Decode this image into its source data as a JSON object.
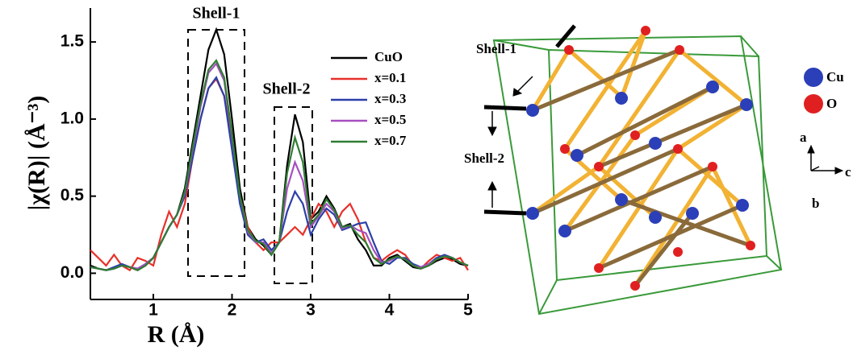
{
  "chart_data": {
    "type": "line",
    "x_label": "R (Å)",
    "y_label": "|χ(R)| (Å⁻³)",
    "x": [
      0.2,
      0.3,
      0.4,
      0.5,
      0.6,
      0.7,
      0.8,
      0.9,
      1.0,
      1.1,
      1.2,
      1.3,
      1.4,
      1.5,
      1.6,
      1.7,
      1.8,
      1.9,
      2.0,
      2.1,
      2.2,
      2.3,
      2.4,
      2.5,
      2.6,
      2.7,
      2.8,
      2.9,
      3.0,
      3.1,
      3.2,
      3.3,
      3.4,
      3.5,
      3.6,
      3.7,
      3.8,
      3.9,
      4.0,
      4.1,
      4.2,
      4.3,
      4.4,
      4.5,
      4.6,
      4.7,
      4.8,
      4.9,
      5.0
    ],
    "series": [
      {
        "name": "CuO",
        "color": "#000000",
        "values": [
          0.05,
          0.03,
          0.02,
          0.03,
          0.05,
          0.04,
          0.02,
          0.05,
          0.1,
          0.2,
          0.3,
          0.38,
          0.55,
          0.85,
          1.15,
          1.45,
          1.58,
          1.42,
          1.0,
          0.55,
          0.3,
          0.22,
          0.18,
          0.12,
          0.2,
          0.7,
          1.03,
          0.85,
          0.35,
          0.4,
          0.5,
          0.42,
          0.3,
          0.32,
          0.22,
          0.15,
          0.05,
          0.05,
          0.1,
          0.12,
          0.08,
          0.04,
          0.03,
          0.05,
          0.08,
          0.1,
          0.09,
          0.06,
          0.05
        ]
      },
      {
        "name": "x=0.1",
        "color": "#e8302a",
        "values": [
          0.15,
          0.1,
          0.05,
          0.12,
          0.05,
          0.02,
          0.1,
          0.08,
          0.05,
          0.25,
          0.4,
          0.3,
          0.45,
          0.75,
          1.0,
          1.2,
          1.26,
          1.15,
          0.85,
          0.5,
          0.3,
          0.2,
          0.15,
          0.2,
          0.2,
          0.25,
          0.3,
          0.25,
          0.35,
          0.45,
          0.4,
          0.3,
          0.4,
          0.45,
          0.35,
          0.2,
          0.1,
          0.08,
          0.12,
          0.15,
          0.12,
          0.05,
          0.03,
          0.08,
          0.12,
          0.1,
          0.08,
          0.1,
          0.02
        ]
      },
      {
        "name": "x=0.3",
        "color": "#2a3fa8",
        "values": [
          0.04,
          0.03,
          0.02,
          0.04,
          0.06,
          0.04,
          0.03,
          0.06,
          0.1,
          0.2,
          0.3,
          0.38,
          0.5,
          0.75,
          1.0,
          1.2,
          1.27,
          1.15,
          0.8,
          0.45,
          0.25,
          0.2,
          0.22,
          0.15,
          0.2,
          0.4,
          0.53,
          0.45,
          0.25,
          0.35,
          0.42,
          0.38,
          0.28,
          0.3,
          0.32,
          0.33,
          0.2,
          0.08,
          0.06,
          0.1,
          0.1,
          0.06,
          0.04,
          0.06,
          0.1,
          0.12,
          0.1,
          0.07,
          0.05
        ]
      },
      {
        "name": "x=0.5",
        "color": "#a64fc0",
        "values": [
          0.04,
          0.03,
          0.02,
          0.03,
          0.05,
          0.04,
          0.03,
          0.06,
          0.1,
          0.2,
          0.3,
          0.38,
          0.52,
          0.8,
          1.08,
          1.3,
          1.36,
          1.25,
          0.88,
          0.5,
          0.27,
          0.2,
          0.2,
          0.13,
          0.2,
          0.55,
          0.72,
          0.6,
          0.3,
          0.37,
          0.45,
          0.4,
          0.29,
          0.31,
          0.28,
          0.26,
          0.15,
          0.07,
          0.08,
          0.11,
          0.09,
          0.05,
          0.04,
          0.06,
          0.09,
          0.11,
          0.1,
          0.07,
          0.05
        ]
      },
      {
        "name": "x=0.7",
        "color": "#2e7d32",
        "values": [
          0.04,
          0.03,
          0.02,
          0.03,
          0.05,
          0.04,
          0.02,
          0.05,
          0.1,
          0.2,
          0.3,
          0.38,
          0.53,
          0.82,
          1.1,
          1.32,
          1.38,
          1.27,
          0.9,
          0.5,
          0.28,
          0.21,
          0.19,
          0.12,
          0.2,
          0.65,
          0.88,
          0.72,
          0.32,
          0.38,
          0.48,
          0.41,
          0.3,
          0.31,
          0.25,
          0.2,
          0.1,
          0.06,
          0.09,
          0.11,
          0.09,
          0.05,
          0.03,
          0.05,
          0.09,
          0.11,
          0.1,
          0.07,
          0.05
        ]
      }
    ],
    "annotations": [
      "Shell-1",
      "Shell-2"
    ],
    "xlim": [
      0.2,
      5
    ],
    "ylim": [
      -0.17,
      1.72
    ],
    "xticks": [
      1,
      2,
      3,
      4,
      5
    ],
    "yticks": [
      {
        "value": 0,
        "label": "0.0"
      },
      0.5,
      {
        "value": 1,
        "label": "1.0"
      },
      1.5
    ],
    "grid": false,
    "legend": "upper right"
  },
  "diagram": {
    "shell_1": "Shell-1",
    "shell_2": "Shell-2",
    "legend": [
      "Cu",
      "O"
    ],
    "axes": [
      "a",
      "b",
      "c"
    ]
  }
}
